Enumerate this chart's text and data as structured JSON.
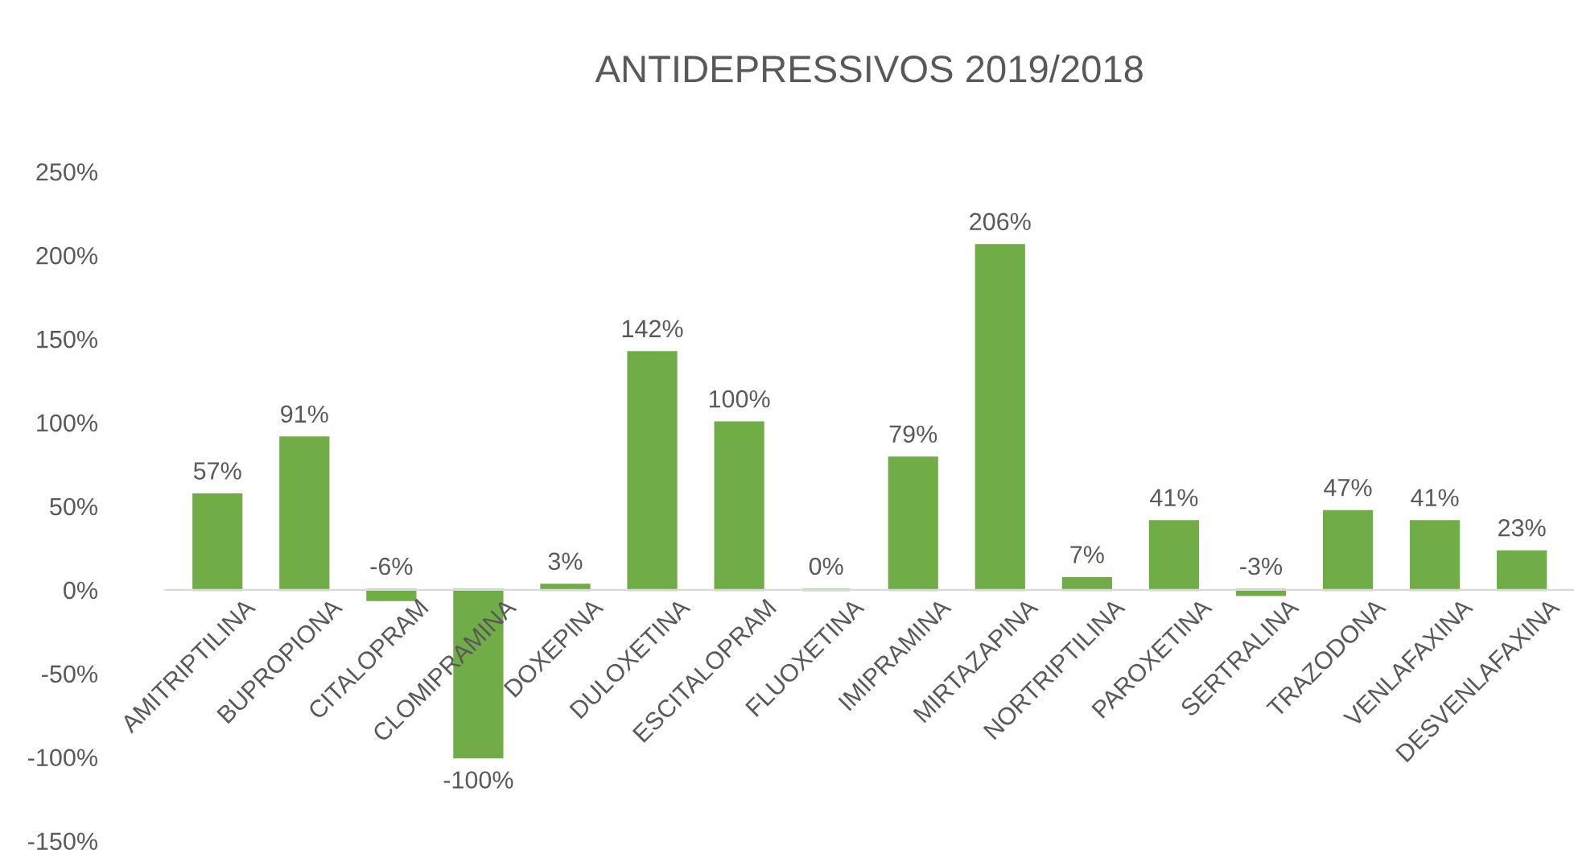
{
  "chart_data": {
    "type": "bar",
    "title": "ANTIDEPRESSIVOS 2019/2018",
    "categories": [
      "AMITRIPTILINA",
      "BUPROPIONA",
      "CITALOPRAM",
      "CLOMIPRAMINA",
      "DOXEPINA",
      "DULOXETINA",
      "ESCITALOPRAM",
      "FLUOXETINA",
      "IMIPRAMINA",
      "MIRTAZAPINA",
      "NORTRIPTILINA",
      "PAROXETINA",
      "SERTRALINA",
      "TRAZODONA",
      "VENLAFAXINA",
      "DESVENLAFAXINA"
    ],
    "values": [
      57,
      91,
      -6,
      -100,
      3,
      142,
      100,
      0,
      79,
      206,
      7,
      41,
      -3,
      47,
      41,
      23
    ],
    "value_labels": [
      "57%",
      "91%",
      "-6%",
      "-100%",
      "3%",
      "142%",
      "100%",
      "0%",
      "79%",
      "206%",
      "7%",
      "41%",
      "-3%",
      "47%",
      "41%",
      "23%"
    ],
    "color": "#70ad47",
    "ylim": [
      -150,
      250
    ],
    "yticks": [
      {
        "value": -150,
        "label": "-150%"
      },
      {
        "value": -100,
        "label": "-100%"
      },
      {
        "value": -50,
        "label": "-50%"
      },
      {
        "value": 0,
        "label": "0%"
      },
      {
        "value": 50,
        "label": "50%"
      },
      {
        "value": 100,
        "label": "100%"
      },
      {
        "value": 150,
        "label": "150%"
      },
      {
        "value": 200,
        "label": "200%"
      },
      {
        "value": 250,
        "label": "250%"
      }
    ],
    "grid": false,
    "legend": false
  }
}
